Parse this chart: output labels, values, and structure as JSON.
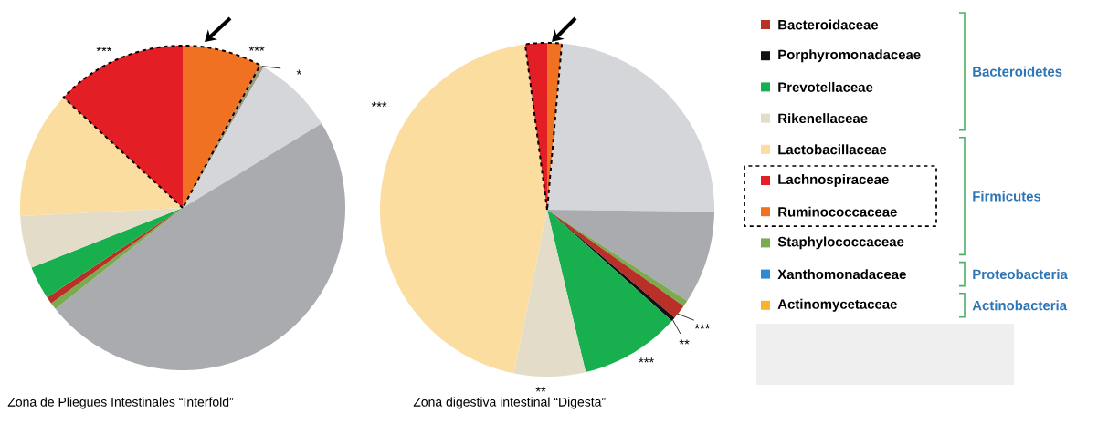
{
  "chart_data": [
    {
      "type": "pie",
      "title": "Zona de Pliegues Intestinales “Interfold”",
      "categories": [
        null,
        null,
        null,
        null,
        null,
        null,
        null,
        null,
        null,
        null
      ],
      "values": [
        7.9,
        0.4,
        8.0,
        48.0,
        0.7,
        0.7,
        3.3,
        5.2,
        12.7,
        13.1
      ],
      "colors": [
        "#f07122",
        "#a09a80",
        "#d5d6da",
        "#a9abae",
        "#7aac4f",
        "#b83028",
        "#18b04f",
        "#e2dcc9",
        "#fbdda0",
        "#e31e24"
      ],
      "annotations": [
        "***",
        "***",
        "*"
      ]
    },
    {
      "type": "pie",
      "title": "Zona digestiva intestinal “Digesta”",
      "categories": [
        "Ruminococcaceae",
        null,
        null,
        "Staphylococcaceae",
        "Bacteroidaceae",
        "Porphyromonadaceae",
        "Prevotellaceae",
        "Rikenellaceae",
        "Lactobacillaceae",
        "Lachnospiraceae",
        "Xanthomonadaceae",
        "Actinomycetaceae"
      ],
      "values": [
        1.4,
        23.8,
        9.0,
        0.6,
        1.4,
        0.4,
        9.7,
        6.9,
        44.7,
        2.1,
        0,
        0
      ],
      "colors": [
        "#f07122",
        "#d5d6da",
        "#a9abae",
        "#7aac4f",
        "#b83028",
        "#111111",
        "#18b04f",
        "#e2dcc9",
        "#fbdda0",
        "#e31e24",
        "#2a8bd0",
        "#f7b52c"
      ],
      "legend": "right",
      "annotations": [
        "***",
        "**",
        "***",
        "**",
        "***",
        "Bacteroidetes",
        "Firmicutes",
        "Proteobacteria",
        "Actinobacteria"
      ]
    }
  ]
}
